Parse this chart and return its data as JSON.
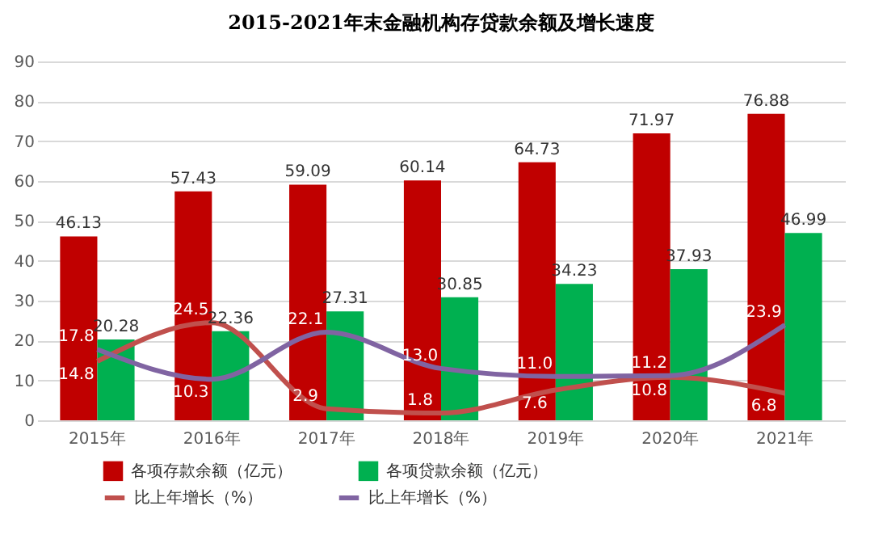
{
  "chart_data": {
    "type": "bar",
    "title": "2015-2021年末金融机构存贷款余额及增长速度",
    "categories": [
      "2015年",
      "2016年",
      "2017年",
      "2018年",
      "2019年",
      "2020年",
      "2021年"
    ],
    "series": [
      {
        "name": "各项存款余额（亿元）",
        "color": "#c00000",
        "values": [
          46.13,
          57.43,
          59.09,
          60.14,
          64.73,
          71.97,
          76.88
        ]
      },
      {
        "name": "各项贷款余额（亿元）",
        "color": "#00b050",
        "values": [
          20.28,
          22.36,
          27.31,
          30.85,
          34.23,
          37.93,
          46.99
        ]
      },
      {
        "name": "比上年增长（%）",
        "type": "line",
        "color": "#c0504d",
        "values": [
          14.8,
          24.5,
          2.9,
          1.8,
          7.6,
          10.8,
          6.8
        ],
        "value_labels": [
          "14.8",
          "24.5",
          "2.9",
          "1.8",
          "7.6",
          "10.8",
          "6.8"
        ]
      },
      {
        "name": "比上年增长（%）",
        "type": "line",
        "color": "#8064a2",
        "values": [
          17.8,
          10.3,
          22.1,
          13.0,
          11.0,
          11.2,
          23.9
        ],
        "value_labels": [
          "17.8",
          "10.3",
          "22.1",
          "13.0",
          "11.0",
          "11.2",
          "23.9"
        ]
      }
    ],
    "ylim": [
      0,
      90
    ],
    "yticks": [
      0,
      10,
      20,
      30,
      40,
      50,
      60,
      70,
      80,
      90
    ],
    "grid": "y",
    "legend": "bottom",
    "data_labels": true,
    "marker": "none",
    "line_style": "solid"
  }
}
